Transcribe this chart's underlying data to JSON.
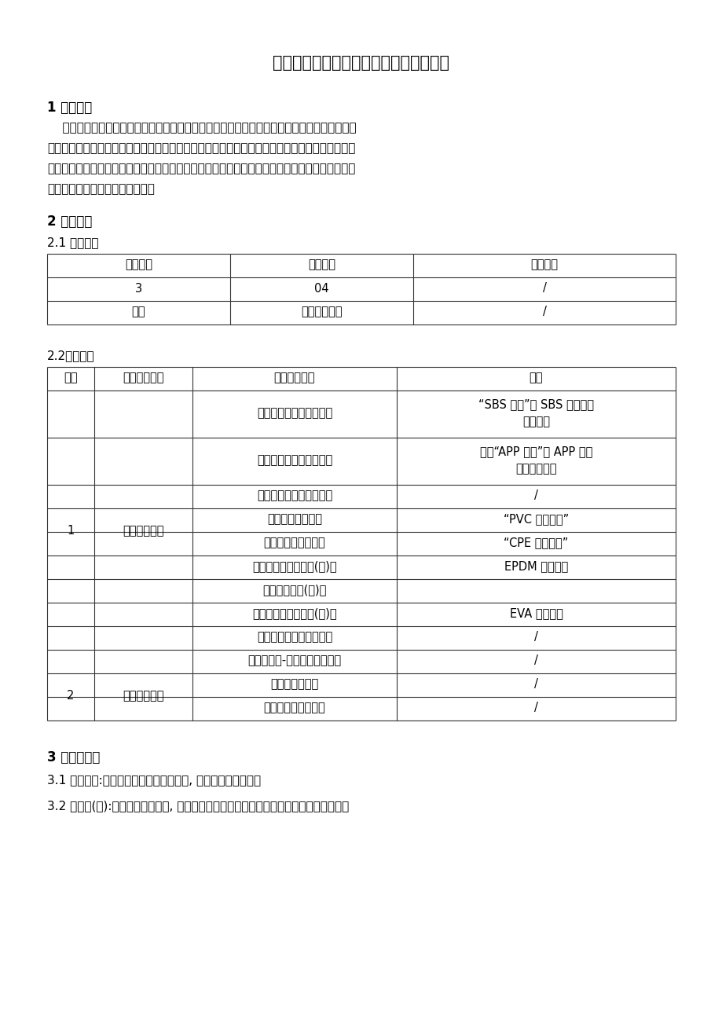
{
  "title": "建筑防水材料产品质量监督抽查实施规范",
  "bg_color": "#ffffff",
  "text_color": "#000000",
  "section1_heading": "1 适用范围",
  "section1_body": [
    "    本规范适用于国家及省级质量技术监督部门组织的建筑防水材料产品质量监督抽查，其它质量",
    "技术监督部门组织的及针对特殊情况的监督抽查可参照执行。监督抽查产品范围包括建筑防水卷材",
    "和建筑防水涂料。本规范内容包括产品分类、术语和定义、企业规模划分、检验依据、抽样、检验",
    "要求、判定原则及异议处理复检。"
  ],
  "section2_heading": "2 产品分类",
  "section21_heading": "2.1 产品属性",
  "table1_headers": [
    "一级分类",
    "二级分类",
    "三级分类"
  ],
  "table1_rows": [
    [
      "3",
      "04",
      "/"
    ],
    [
      "建材",
      "建筑防水材料",
      "/"
    ]
  ],
  "section22_heading": "2.2产品种类",
  "table2_headers": [
    "序号",
    "产品种类名称",
    "细分种类名称",
    "简称"
  ],
  "table2_rows": [
    [
      "1",
      "建筑防水卷材",
      "弹性体改性沥青防水卷材",
      "“SBS 卷材”或 SBS 改性沥青\n防水卷材"
    ],
    [
      "",
      "",
      "塑性体改性沥青防水卷材",
      "简称“APP 卷材”或 APP 改性\n沥青防水卷材"
    ],
    [
      "",
      "",
      "沥青复合胎柔性防水卷材",
      "/"
    ],
    [
      "",
      "",
      "聚氯乙烯防水卷材",
      "“PVC 防水卷材”"
    ],
    [
      "",
      "",
      "氯化聚乙烯防水卷材",
      "“CPE 防水卷材”"
    ],
    [
      "",
      "",
      "三元乙丙橡胶防水卷(片)材",
      "EPDM 防水卷材"
    ],
    [
      "",
      "",
      "聚乙烯防水卷(片)材",
      ""
    ],
    [
      "",
      "",
      "乙烯乙酸乙烯防水卷(片)材",
      "EVA 防水卷材"
    ],
    [
      "",
      "",
      "聚乙烯丙纶复合防水卷材",
      "/"
    ],
    [
      "",
      "",
      "氯化聚乙烯-橡胶共混防水卷材",
      "/"
    ],
    [
      "2",
      "建筑防水涂料",
      "聚氨酯防水涂料",
      "/"
    ],
    [
      "",
      "",
      "聚合物水泥防水涂料",
      "/"
    ]
  ],
  "section3_heading": "3 术语和定义",
  "section3_items": [
    "3.1 胎基材料:用于沥青防水卷材中间部位, 作为增强层的材料。",
    "3.2 聚酯胎(毡):以涤纶纤维为原料, 采用针刺法经热粘合或化学粘合方法生产的非织造布。"
  ]
}
